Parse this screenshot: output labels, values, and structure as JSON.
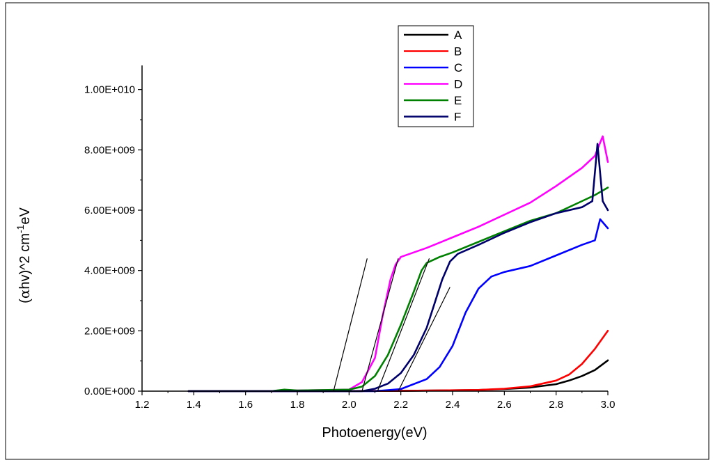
{
  "chart_data": {
    "type": "line",
    "title": "",
    "xlabel": "Photoenergy(eV)",
    "ylabel_parts": {
      "prefix": "(",
      "alpha": "α",
      "main": "hv)^2 cm",
      "sup": "-1",
      "suffix": "eV"
    },
    "xlim": [
      1.2,
      3.0
    ],
    "ylim": [
      0,
      10800000000
    ],
    "xticks": [
      1.2,
      1.4,
      1.6,
      1.8,
      2.0,
      2.2,
      2.4,
      2.6,
      2.8,
      3.0
    ],
    "xtick_labels": [
      "1.2",
      "1.4",
      "1.6",
      "1.8",
      "2.0",
      "2.2",
      "2.4",
      "2.6",
      "2.8",
      "3.0"
    ],
    "yticks": [
      0,
      2000000000,
      4000000000,
      6000000000,
      8000000000,
      10000000000
    ],
    "ytick_labels": [
      "0.00E+000",
      "2.00E+009",
      "4.00E+009",
      "6.00E+009",
      "8.00E+009",
      "1.00E+010"
    ],
    "grid": false,
    "legend_position": "top-center",
    "series": [
      {
        "name": "A",
        "color": "#000000",
        "x": [
          1.38,
          1.8,
          2.2,
          2.5,
          2.6,
          2.7,
          2.8,
          2.85,
          2.9,
          2.95,
          3.0
        ],
        "y": [
          0,
          0,
          10000000,
          40000000,
          70000000,
          120000000,
          230000000,
          350000000,
          500000000,
          700000000,
          1020000000
        ]
      },
      {
        "name": "B",
        "color": "#ff0000",
        "x": [
          1.38,
          1.8,
          2.2,
          2.5,
          2.6,
          2.7,
          2.8,
          2.85,
          2.9,
          2.95,
          3.0
        ],
        "y": [
          0,
          0,
          10000000,
          40000000,
          80000000,
          160000000,
          350000000,
          550000000,
          900000000,
          1400000000,
          2000000000
        ]
      },
      {
        "name": "C",
        "color": "#0000ff",
        "x": [
          1.38,
          2.1,
          2.2,
          2.3,
          2.35,
          2.4,
          2.45,
          2.5,
          2.55,
          2.6,
          2.7,
          2.8,
          2.9,
          2.95,
          2.97,
          3.0
        ],
        "y": [
          0,
          0,
          70000000,
          400000000,
          800000000,
          1500000000,
          2600000000,
          3400000000,
          3800000000,
          3950000000,
          4150000000,
          4500000000,
          4850000000,
          5000000000,
          5700000000,
          5400000000
        ]
      },
      {
        "name": "D",
        "color": "#ff00ff",
        "x": [
          1.38,
          1.7,
          1.75,
          1.8,
          2.0,
          2.05,
          2.1,
          2.13,
          2.16,
          2.18,
          2.2,
          2.3,
          2.4,
          2.5,
          2.6,
          2.7,
          2.8,
          2.9,
          2.95,
          2.98,
          3.0
        ],
        "y": [
          0,
          0,
          40000000,
          20000000,
          50000000,
          300000000,
          1100000000,
          2500000000,
          3700000000,
          4200000000,
          4450000000,
          4750000000,
          5100000000,
          5450000000,
          5850000000,
          6250000000,
          6800000000,
          7400000000,
          7800000000,
          8450000000,
          7600000000
        ]
      },
      {
        "name": "E",
        "color": "#008000",
        "x": [
          1.38,
          1.7,
          1.75,
          1.8,
          2.0,
          2.05,
          2.1,
          2.15,
          2.2,
          2.25,
          2.28,
          2.3,
          2.35,
          2.4,
          2.5,
          2.6,
          2.7,
          2.8,
          2.9,
          2.95,
          3.0
        ],
        "y": [
          0,
          0,
          50000000,
          20000000,
          50000000,
          150000000,
          500000000,
          1200000000,
          2200000000,
          3300000000,
          4000000000,
          4250000000,
          4450000000,
          4600000000,
          4950000000,
          5300000000,
          5650000000,
          5900000000,
          6300000000,
          6500000000,
          6750000000
        ]
      },
      {
        "name": "F",
        "color": "#00006b",
        "x": [
          1.38,
          2.05,
          2.1,
          2.15,
          2.2,
          2.25,
          2.3,
          2.33,
          2.36,
          2.39,
          2.42,
          2.5,
          2.6,
          2.7,
          2.8,
          2.9,
          2.94,
          2.96,
          2.98,
          3.0
        ],
        "y": [
          0,
          0,
          80000000,
          250000000,
          600000000,
          1200000000,
          2100000000,
          2900000000,
          3700000000,
          4300000000,
          4550000000,
          4850000000,
          5250000000,
          5600000000,
          5900000000,
          6100000000,
          6300000000,
          8200000000,
          6300000000,
          6000000000
        ]
      }
    ],
    "tangent_lines": [
      {
        "x": [
          1.94,
          2.07
        ],
        "y": [
          0,
          4400000000
        ]
      },
      {
        "x": [
          2.05,
          2.19
        ],
        "y": [
          0,
          4400000000
        ]
      },
      {
        "x": [
          2.11,
          2.31
        ],
        "y": [
          0,
          4400000000
        ]
      },
      {
        "x": [
          2.19,
          2.39
        ],
        "y": [
          0,
          3450000000
        ]
      }
    ]
  }
}
